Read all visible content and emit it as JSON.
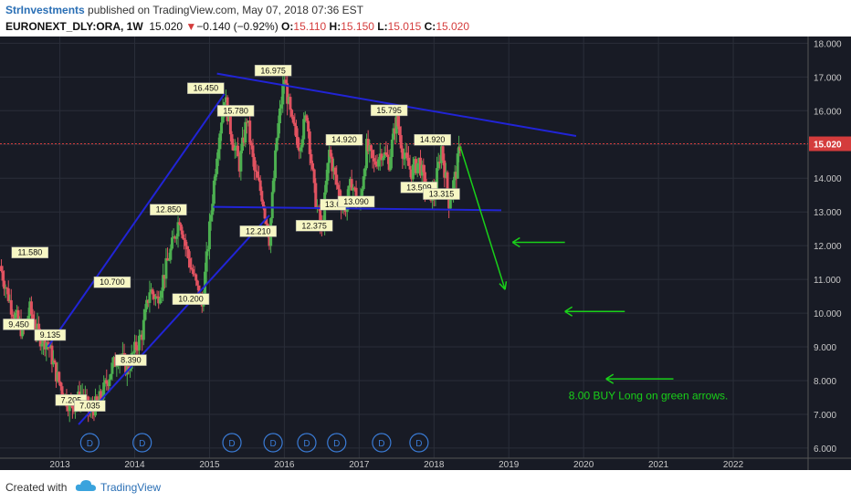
{
  "header": {
    "author": "StrInvestments",
    "published": "published on TradingView.com, May 07, 2018 07:36 EST",
    "symbol": "EURONEXT_DLY:ORA, 1W",
    "last": "15.020",
    "change_arrow": "▼",
    "change": "−0.140 (−0.92%)",
    "o_label": "O:",
    "o": "15.110",
    "h_label": "H:",
    "h": "15.150",
    "l_label": "L:",
    "l": "15.015",
    "c_label": "C:",
    "c": "15.020"
  },
  "footer": {
    "created": "Created with",
    "brand": "TradingView",
    "logo_icon": "tradingview-cloud-icon"
  },
  "colors": {
    "background": "#181b25",
    "up": "#4caf50",
    "down": "#e05260",
    "trend": "#2124d6",
    "arrow": "#19d119",
    "price_badge": "#d43c3c",
    "level_label_bg": "#f7f7c4"
  },
  "chart_data": {
    "type": "candlestick",
    "x_ticks": [
      "2013",
      "2014",
      "2015",
      "2016",
      "2017",
      "2018",
      "2019",
      "2020",
      "2021",
      "2022"
    ],
    "x_tick_values": [
      2013,
      2014,
      2015,
      2016,
      2017,
      2018,
      2019,
      2020,
      2021,
      2022
    ],
    "y_ticks": [
      "18.000",
      "17.000",
      "16.000",
      "15.000",
      "14.000",
      "13.000",
      "12.000",
      "11.000",
      "10.000",
      "9.000",
      "8.000",
      "7.000",
      "6.000"
    ],
    "y_tick_values": [
      18,
      17,
      16,
      15,
      14,
      13,
      12,
      11,
      10,
      9,
      8,
      7,
      6
    ],
    "xlim": [
      2012.2,
      2023.0
    ],
    "ylim": [
      5.7,
      18.2
    ],
    "last_price": "15.020",
    "last_price_value": 15.02,
    "price_path": [
      [
        2012.2,
        11.4
      ],
      [
        2012.35,
        10.2
      ],
      [
        2012.5,
        9.45
      ],
      [
        2012.6,
        10.1
      ],
      [
        2012.72,
        9.3
      ],
      [
        2012.84,
        9.135
      ],
      [
        2012.95,
        8.2
      ],
      [
        2013.05,
        7.6
      ],
      [
        2013.15,
        7.205
      ],
      [
        2013.3,
        7.6
      ],
      [
        2013.4,
        7.035
      ],
      [
        2013.55,
        7.5
      ],
      [
        2013.7,
        8.4
      ],
      [
        2013.8,
        8.8
      ],
      [
        2013.9,
        8.3
      ],
      [
        2014.0,
        8.9
      ],
      [
        2014.1,
        9.4
      ],
      [
        2014.2,
        10.7
      ],
      [
        2014.3,
        10.4
      ],
      [
        2014.4,
        11.2
      ],
      [
        2014.5,
        12.0
      ],
      [
        2014.6,
        12.85
      ],
      [
        2014.7,
        11.8
      ],
      [
        2014.8,
        11.0
      ],
      [
        2014.9,
        10.2
      ],
      [
        2015.0,
        12.5
      ],
      [
        2015.1,
        14.8
      ],
      [
        2015.2,
        16.45
      ],
      [
        2015.3,
        15.2
      ],
      [
        2015.4,
        14.4
      ],
      [
        2015.5,
        15.78
      ],
      [
        2015.6,
        14.2
      ],
      [
        2015.7,
        13.5
      ],
      [
        2015.8,
        12.21
      ],
      [
        2015.9,
        15.2
      ],
      [
        2016.0,
        16.975
      ],
      [
        2016.1,
        15.6
      ],
      [
        2016.2,
        15.0
      ],
      [
        2016.3,
        15.9
      ],
      [
        2016.4,
        13.6
      ],
      [
        2016.5,
        12.375
      ],
      [
        2016.6,
        14.8
      ],
      [
        2016.7,
        13.8
      ],
      [
        2016.8,
        13.0
      ],
      [
        2016.9,
        13.9
      ],
      [
        2017.0,
        13.09
      ],
      [
        2017.1,
        14.92
      ],
      [
        2017.2,
        14.4
      ],
      [
        2017.3,
        14.8
      ],
      [
        2017.4,
        14.5
      ],
      [
        2017.5,
        15.795
      ],
      [
        2017.6,
        14.6
      ],
      [
        2017.7,
        14.2
      ],
      [
        2017.8,
        14.5
      ],
      [
        2017.9,
        13.6
      ],
      [
        2018.0,
        13.509
      ],
      [
        2018.1,
        14.92
      ],
      [
        2018.2,
        13.315
      ],
      [
        2018.3,
        14.2
      ],
      [
        2018.35,
        15.02
      ]
    ],
    "price_labels": [
      {
        "text": "11.580",
        "x": 2012.6,
        "y": 11.58
      },
      {
        "text": "9.450",
        "x": 2012.45,
        "y": 9.45
      },
      {
        "text": "9.135",
        "x": 2012.87,
        "y": 9.135
      },
      {
        "text": "7.205",
        "x": 2013.15,
        "y": 7.205
      },
      {
        "text": "7.035",
        "x": 2013.4,
        "y": 7.035
      },
      {
        "text": "8.390",
        "x": 2013.95,
        "y": 8.39
      },
      {
        "text": "10.700",
        "x": 2013.7,
        "y": 10.7
      },
      {
        "text": "12.850",
        "x": 2014.45,
        "y": 12.85
      },
      {
        "text": "10.200",
        "x": 2014.75,
        "y": 10.2
      },
      {
        "text": "16.450",
        "x": 2014.95,
        "y": 16.45
      },
      {
        "text": "15.780",
        "x": 2015.35,
        "y": 15.78
      },
      {
        "text": "16.975",
        "x": 2015.85,
        "y": 16.975
      },
      {
        "text": "12.210",
        "x": 2015.65,
        "y": 12.21
      },
      {
        "text": "12.375",
        "x": 2016.4,
        "y": 12.375
      },
      {
        "text": "14.920",
        "x": 2016.8,
        "y": 14.92
      },
      {
        "text": "13.0",
        "x": 2016.65,
        "y": 13.0
      },
      {
        "text": "13.090",
        "x": 2016.96,
        "y": 13.09
      },
      {
        "text": "15.795",
        "x": 2017.4,
        "y": 15.795
      },
      {
        "text": "14.920",
        "x": 2017.98,
        "y": 14.92
      },
      {
        "text": "13.509",
        "x": 2017.8,
        "y": 13.509
      },
      {
        "text": "13.315",
        "x": 2018.1,
        "y": 13.315
      }
    ],
    "dividend_marks": [
      2013.4,
      2014.1,
      2015.3,
      2015.85,
      2016.3,
      2016.7,
      2017.3,
      2017.8
    ],
    "dividend_label": "D",
    "trend_lines": [
      {
        "name": "upper-channel",
        "from": [
          2012.84,
          9.0
        ],
        "to": [
          2015.2,
          16.5
        ]
      },
      {
        "name": "lower-channel",
        "from": [
          2013.25,
          6.7
        ],
        "to": [
          2015.8,
          12.9
        ]
      },
      {
        "name": "descending-resistance",
        "from": [
          2015.1,
          17.1
        ],
        "to": [
          2019.9,
          15.25
        ]
      },
      {
        "name": "support",
        "from": [
          2015.05,
          13.15
        ],
        "to": [
          2018.9,
          13.05
        ]
      }
    ],
    "projection": {
      "from": [
        2018.35,
        14.95
      ],
      "to": [
        2018.95,
        10.7
      ]
    },
    "buy_arrows": [
      {
        "y": 12.1,
        "x_from": 2019.75,
        "x_to": 2019.05
      },
      {
        "y": 10.05,
        "x_from": 2020.55,
        "x_to": 2019.75
      },
      {
        "y": 8.05,
        "x_from": 2021.2,
        "x_to": 2020.3
      }
    ],
    "annotation": "8.00 BUY Long on green arrows.",
    "annotation_x": 2019.8,
    "annotation_y": 7.45
  }
}
